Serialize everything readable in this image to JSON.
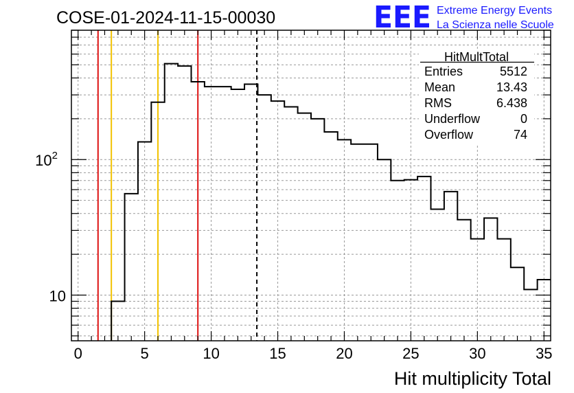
{
  "title": "COSE-01-2024-11-15-00030",
  "logo": {
    "mark": "EEE",
    "line1": "Extreme Energy Events",
    "line2": "La Scienza nelle Scuole",
    "color": "#1a1aff"
  },
  "stats": {
    "name": "HitMultTotal",
    "rows": [
      {
        "label": "Entries",
        "value": "5512"
      },
      {
        "label": "Mean",
        "value": "13.43"
      },
      {
        "label": "RMS",
        "value": "6.438"
      },
      {
        "label": "Underflow",
        "value": "0"
      },
      {
        "label": "Overflow",
        "value": "74"
      }
    ]
  },
  "chart_data": {
    "type": "bar",
    "style": "step-histogram",
    "xlabel": "Hit multiplicity Total",
    "ylabel": "",
    "xlim": [
      -0.5,
      35.5
    ],
    "ylim": [
      4.6,
      900
    ],
    "ylog": true,
    "grid": true,
    "x_ticks": [
      0,
      5,
      10,
      15,
      20,
      25,
      30,
      35
    ],
    "y_tick_labels": [
      {
        "value": 10,
        "label": "10"
      },
      {
        "value": 100,
        "label": "10",
        "sup": "2"
      }
    ],
    "bin_width": 1,
    "bin_low_edges": [
      2.5,
      3.5,
      4.5,
      5.5,
      6.5,
      7.5,
      8.5,
      9.5,
      10.5,
      11.5,
      12.5,
      13.5,
      14.5,
      15.5,
      16.5,
      17.5,
      18.5,
      19.5,
      20.5,
      21.5,
      22.5,
      23.5,
      24.5,
      25.5,
      26.5,
      27.5,
      28.5,
      29.5,
      30.5,
      31.5,
      32.5,
      33.5,
      34.5
    ],
    "counts": [
      9,
      56,
      135,
      265,
      510,
      490,
      375,
      345,
      345,
      330,
      360,
      300,
      270,
      245,
      220,
      200,
      160,
      140,
      130,
      130,
      100,
      70,
      71,
      75,
      43,
      58,
      36,
      26,
      37,
      26,
      16,
      11,
      13
    ],
    "vertical_lines": [
      {
        "x": 1.5,
        "color": "#dd1111",
        "style": "solid"
      },
      {
        "x": 2.5,
        "color": "#f2c200",
        "style": "solid"
      },
      {
        "x": 6,
        "color": "#f2c200",
        "style": "solid"
      },
      {
        "x": 9,
        "color": "#dd1111",
        "style": "solid"
      },
      {
        "x": 13.43,
        "color": "#000000",
        "style": "dashed"
      }
    ]
  }
}
